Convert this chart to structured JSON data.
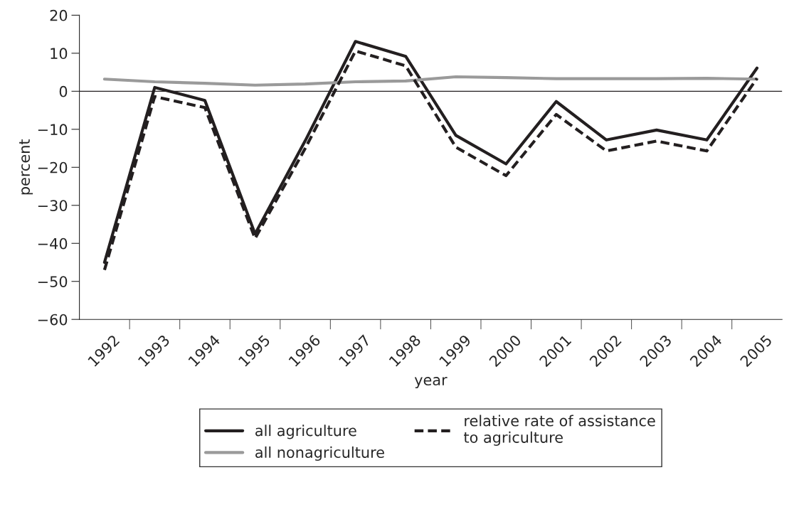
{
  "chart_data": {
    "type": "line",
    "xlabel": "year",
    "ylabel": "percent",
    "categories": [
      "1992",
      "1993",
      "1994",
      "1995",
      "1996",
      "1997",
      "1998",
      "1999",
      "2000",
      "2001",
      "2002",
      "2003",
      "2004",
      "2005"
    ],
    "series": [
      {
        "name": "all agriculture",
        "color": "#231f20",
        "line_style": "solid",
        "values": [
          -45,
          1,
          -2.4,
          -37.5,
          -13,
          13.1,
          9.2,
          -11.6,
          -19.1,
          -2.7,
          -12.8,
          -10.2,
          -12.8,
          6.1
        ]
      },
      {
        "name": "all nonagriculture",
        "color": "#9a9a9a",
        "line_style": "solid",
        "values": [
          3.2,
          2.5,
          2.1,
          1.6,
          1.9,
          2.5,
          2.7,
          3.8,
          3.6,
          3.3,
          3.3,
          3.3,
          3.4,
          3.2
        ]
      },
      {
        "name": "relative rate of assistance\nto agriculture",
        "color": "#231f20",
        "line_style": "dashed",
        "values": [
          -47,
          -1.4,
          -4.3,
          -38.7,
          -15,
          10.6,
          6.7,
          -14.7,
          -22.2,
          -6.1,
          -15.7,
          -13.1,
          -15.7,
          3.4
        ]
      }
    ],
    "ylim": [
      -60,
      20
    ],
    "yticks": [
      {
        "value": -60,
        "label": "−60"
      },
      {
        "value": -50,
        "label": "−50"
      },
      {
        "value": -40,
        "label": "−40"
      },
      {
        "value": -30,
        "label": "−30"
      },
      {
        "value": -20,
        "label": "−20"
      },
      {
        "value": -10,
        "label": "−10"
      },
      0,
      10,
      20
    ],
    "ref_lines": [
      {
        "axis": "y",
        "value": 0,
        "color": "#231f20"
      }
    ],
    "grid": false,
    "legend": "bottom",
    "marker": "none"
  }
}
